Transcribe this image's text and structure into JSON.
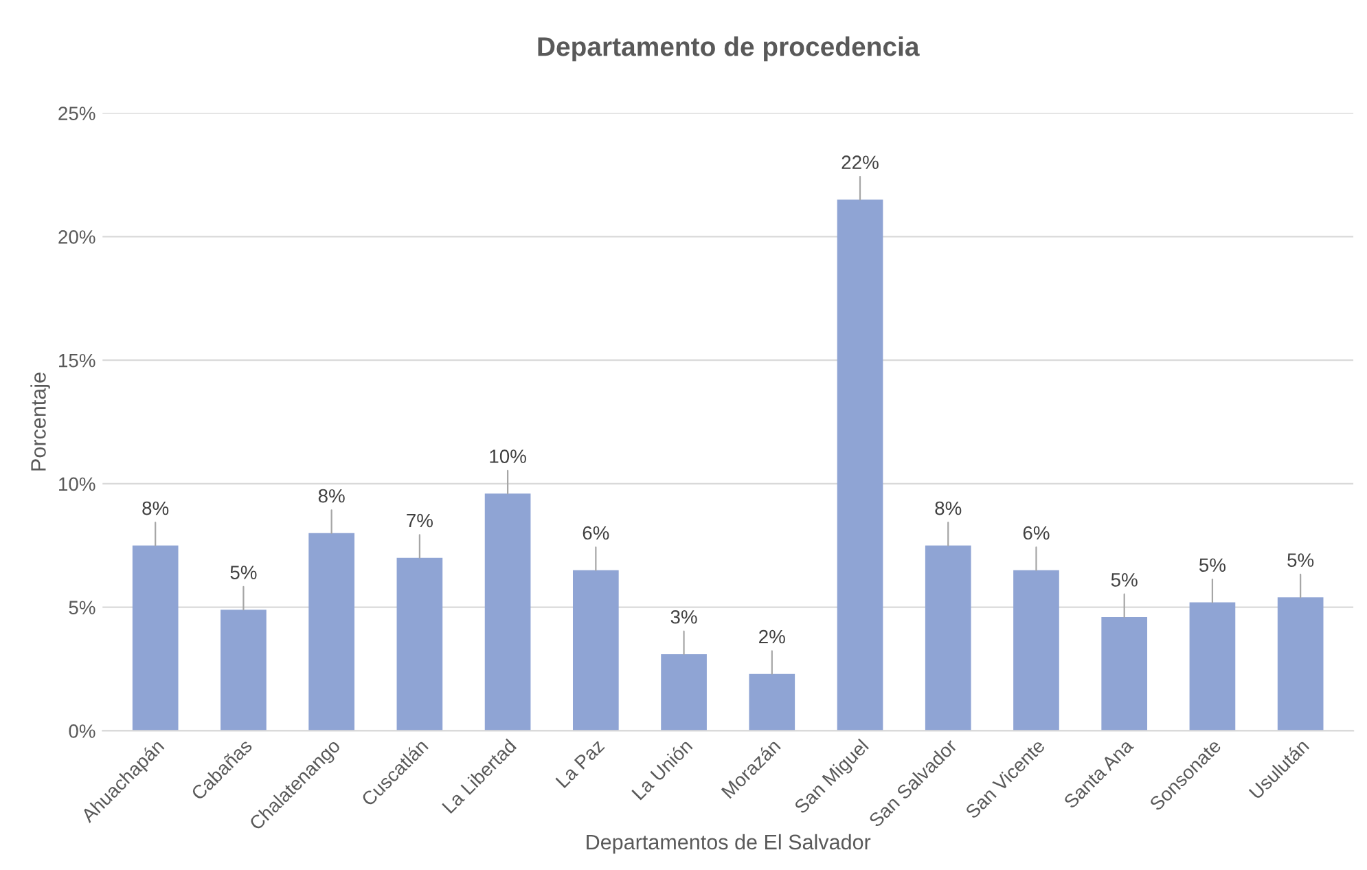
{
  "chart_data": {
    "type": "bar",
    "title": "Departamento de procedencia",
    "xlabel": "Departamentos de El Salvador",
    "ylabel": "Porcentaje",
    "categories": [
      "Ahuachapán",
      "Cabañas",
      "Chalatenango",
      "Cuscatlán",
      "La Libertad",
      "La Paz",
      "La Unión",
      "Morazán",
      "San Miguel",
      "San Salvador",
      "San Vicente",
      "Santa Ana",
      "Sonsonate",
      "Usulután"
    ],
    "values": [
      7.5,
      4.9,
      8.0,
      7.0,
      9.6,
      6.5,
      3.1,
      2.3,
      21.5,
      7.5,
      6.5,
      4.6,
      5.2,
      5.4
    ],
    "value_labels": [
      "8%",
      "5%",
      "8%",
      "7%",
      "10%",
      "6%",
      "3%",
      "2%",
      "22%",
      "8%",
      "6%",
      "5%",
      "5%",
      "5%"
    ],
    "color": "#8fa4d4",
    "ylim": [
      0,
      25
    ],
    "yticks": [
      {
        "value": 0,
        "label": "0%"
      },
      {
        "value": 5,
        "label": "5%"
      },
      {
        "value": 10,
        "label": "10%"
      },
      {
        "value": 15,
        "label": "15%"
      },
      {
        "value": 20,
        "label": "20%"
      },
      {
        "value": 25,
        "label": "25%"
      }
    ],
    "grid": "y"
  }
}
